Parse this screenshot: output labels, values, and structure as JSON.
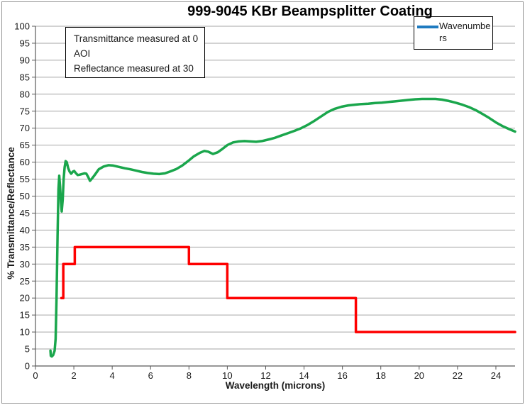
{
  "title": "999-9045 KBr Beampsplitter Coating",
  "annotation": {
    "lines": [
      "Transmittance measured at 0",
      "AOI",
      "Reflectance measured at 30"
    ]
  },
  "legend": {
    "label": "Wavenumbers"
  },
  "axes": {
    "xlabel": "Wavelength (microns)",
    "ylabel": "% Transmittance/Reflectance"
  },
  "colors": {
    "background": "#FFFFFF",
    "chart_border": "#969696",
    "grid": "#A6A6A6",
    "axis": "#595959",
    "green_line": "#1AA64C",
    "red_line": "#FE0000",
    "legend_line": "#1F7BC0",
    "text": "#1a1a1a"
  },
  "chart_data": {
    "type": "line",
    "title": "999-9045 KBr Beampsplitter Coating",
    "xlabel": "Wavelength (microns)",
    "ylabel": "% Transmittance/Reflectance",
    "xlim": [
      0,
      25
    ],
    "ylim": [
      0,
      100
    ],
    "x_ticks": [
      0,
      2,
      4,
      6,
      8,
      10,
      12,
      14,
      16,
      18,
      20,
      22,
      24
    ],
    "y_ticks": [
      0,
      5,
      10,
      15,
      20,
      25,
      30,
      35,
      40,
      45,
      50,
      55,
      60,
      65,
      70,
      75,
      80,
      85,
      90,
      95,
      100
    ],
    "grid": "horizontal-only",
    "legend": {
      "label": "Wavenumbers",
      "position": "top-right",
      "swatch_color": "#1F7BC0"
    },
    "annotation_text": "Transmittance measured at 0 AOI. Reflectance measured at 30",
    "series": [
      {
        "name": "green_curve",
        "color": "#1AA64C",
        "points": [
          [
            0.78,
            4.5
          ],
          [
            0.8,
            3
          ],
          [
            0.85,
            2.8
          ],
          [
            0.92,
            3.2
          ],
          [
            1,
            4.5
          ],
          [
            1.05,
            8
          ],
          [
            1.1,
            20
          ],
          [
            1.15,
            38
          ],
          [
            1.2,
            52
          ],
          [
            1.24,
            56
          ],
          [
            1.28,
            53
          ],
          [
            1.33,
            48
          ],
          [
            1.37,
            45.5
          ],
          [
            1.42,
            49
          ],
          [
            1.47,
            55
          ],
          [
            1.52,
            58.5
          ],
          [
            1.57,
            60.3
          ],
          [
            1.63,
            60
          ],
          [
            1.7,
            58.3
          ],
          [
            1.78,
            57.2
          ],
          [
            1.86,
            56.6
          ],
          [
            1.95,
            57.2
          ],
          [
            2.02,
            57.4
          ],
          [
            2.1,
            56.8
          ],
          [
            2.2,
            56.2
          ],
          [
            2.3,
            56.3
          ],
          [
            2.42,
            56.5
          ],
          [
            2.55,
            56.7
          ],
          [
            2.65,
            56.6
          ],
          [
            2.75,
            55.6
          ],
          [
            2.84,
            54.5
          ],
          [
            2.95,
            55.2
          ],
          [
            3.1,
            56.3
          ],
          [
            3.3,
            57.9
          ],
          [
            3.55,
            58.7
          ],
          [
            3.8,
            59.1
          ],
          [
            4.05,
            59
          ],
          [
            4.35,
            58.6
          ],
          [
            4.65,
            58.2
          ],
          [
            4.95,
            57.9
          ],
          [
            5.25,
            57.5
          ],
          [
            5.55,
            57.1
          ],
          [
            5.85,
            56.8
          ],
          [
            6.15,
            56.6
          ],
          [
            6.45,
            56.5
          ],
          [
            6.75,
            56.7
          ],
          [
            7.05,
            57.3
          ],
          [
            7.35,
            58
          ],
          [
            7.65,
            59
          ],
          [
            7.95,
            60.3
          ],
          [
            8.25,
            61.7
          ],
          [
            8.55,
            62.7
          ],
          [
            8.8,
            63.3
          ],
          [
            9,
            63.1
          ],
          [
            9.25,
            62.4
          ],
          [
            9.5,
            62.9
          ],
          [
            9.75,
            63.9
          ],
          [
            10,
            65
          ],
          [
            10.3,
            65.8
          ],
          [
            10.6,
            66.1
          ],
          [
            10.9,
            66.2
          ],
          [
            11.2,
            66.1
          ],
          [
            11.5,
            66
          ],
          [
            11.8,
            66.2
          ],
          [
            12.1,
            66.6
          ],
          [
            12.45,
            67.1
          ],
          [
            12.8,
            67.8
          ],
          [
            13.15,
            68.5
          ],
          [
            13.5,
            69.2
          ],
          [
            13.85,
            70
          ],
          [
            14.2,
            71
          ],
          [
            14.55,
            72.2
          ],
          [
            14.9,
            73.5
          ],
          [
            15.25,
            74.8
          ],
          [
            15.6,
            75.7
          ],
          [
            15.95,
            76.3
          ],
          [
            16.3,
            76.7
          ],
          [
            16.65,
            76.9
          ],
          [
            17,
            77.1
          ],
          [
            17.35,
            77.2
          ],
          [
            17.7,
            77.4
          ],
          [
            18.05,
            77.5
          ],
          [
            18.4,
            77.7
          ],
          [
            18.75,
            77.9
          ],
          [
            19.1,
            78.1
          ],
          [
            19.45,
            78.3
          ],
          [
            19.8,
            78.5
          ],
          [
            20.15,
            78.6
          ],
          [
            20.5,
            78.6
          ],
          [
            20.85,
            78.6
          ],
          [
            21.2,
            78.4
          ],
          [
            21.55,
            78
          ],
          [
            21.9,
            77.5
          ],
          [
            22.25,
            76.9
          ],
          [
            22.6,
            76.2
          ],
          [
            22.95,
            75.3
          ],
          [
            23.3,
            74.2
          ],
          [
            23.65,
            73
          ],
          [
            24,
            71.7
          ],
          [
            24.35,
            70.6
          ],
          [
            24.7,
            69.7
          ],
          [
            25,
            69
          ]
        ]
      },
      {
        "name": "red_step_curve",
        "color": "#FE0000",
        "points": [
          [
            1.35,
            20
          ],
          [
            1.45,
            20
          ],
          [
            1.45,
            30
          ],
          [
            2.05,
            30
          ],
          [
            2.05,
            35
          ],
          [
            8,
            35
          ],
          [
            8,
            30
          ],
          [
            10,
            30
          ],
          [
            10,
            20
          ],
          [
            16.7,
            20
          ],
          [
            16.7,
            10
          ],
          [
            25,
            10
          ]
        ]
      }
    ]
  }
}
